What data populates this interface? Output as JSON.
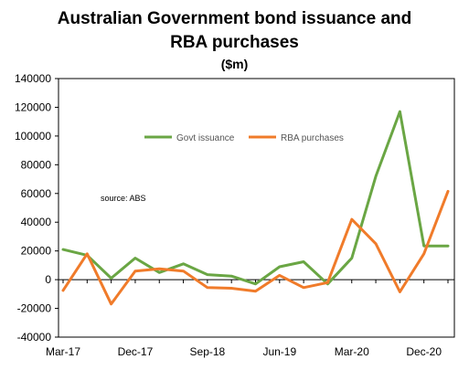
{
  "chart_data": {
    "type": "line",
    "title": "Australian Government bond issuance and",
    "title_line2": "RBA purchases",
    "subtitle": "($m)",
    "annotation": "source:  ABS",
    "x_tick_labels": [
      "Mar-17",
      "Dec-17",
      "Sep-18",
      "Jun-19",
      "Mar-20",
      "Dec-20"
    ],
    "x": [
      "Mar-17",
      "Jun-17",
      "Sep-17",
      "Dec-17",
      "Mar-18",
      "Jun-18",
      "Sep-18",
      "Dec-18",
      "Mar-19",
      "Jun-19",
      "Sep-19",
      "Dec-19",
      "Mar-20",
      "Jun-20",
      "Sep-20",
      "Dec-20",
      "Mar-21"
    ],
    "ylim": [
      -40000,
      140000
    ],
    "yticks": [
      -40000,
      -20000,
      0,
      20000,
      40000,
      60000,
      80000,
      100000,
      120000,
      140000
    ],
    "grid": false,
    "legend_position": "top-center",
    "series": [
      {
        "name": "Govt issuance",
        "color": "#6aa644",
        "values": [
          21000,
          17000,
          1000,
          15000,
          5000,
          11000,
          3500,
          2500,
          -3000,
          9000,
          12500,
          -3000,
          15000,
          72000,
          117000,
          23500,
          23500
        ]
      },
      {
        "name": "RBA purchases",
        "color": "#f07b2a",
        "values": [
          -7500,
          18000,
          -17000,
          6000,
          7500,
          6000,
          -5500,
          -6000,
          -8000,
          3000,
          -5500,
          -2000,
          42000,
          25000,
          -8500,
          18000,
          61500
        ]
      }
    ]
  }
}
